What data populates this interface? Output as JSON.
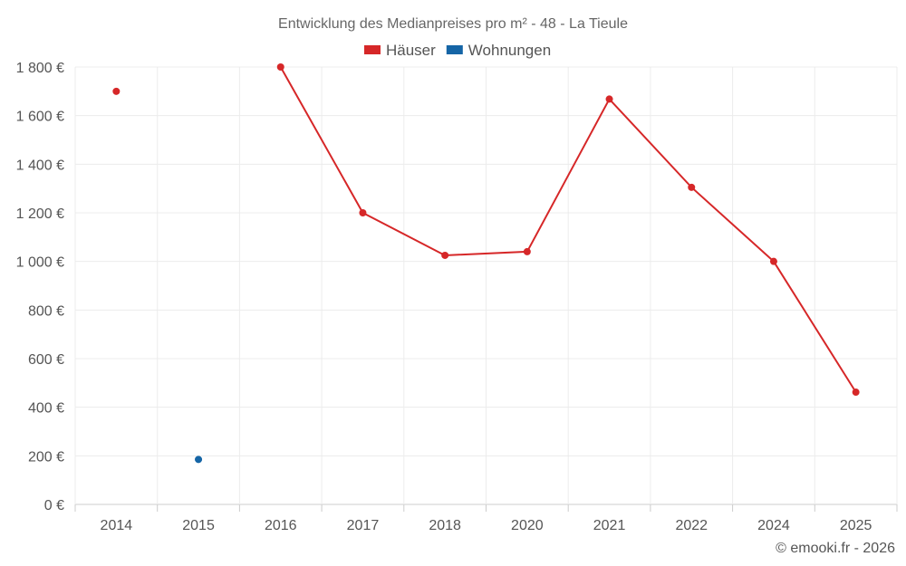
{
  "chart_data": {
    "type": "line",
    "title": "Entwicklung des Medianpreises pro m² - 48 - La Tieule",
    "categories": [
      "2014",
      "2015",
      "2016",
      "2017",
      "2018",
      "2020",
      "2021",
      "2022",
      "2024",
      "2025"
    ],
    "series": [
      {
        "name": "Häuser",
        "color": "#d62728",
        "values": [
          1700,
          null,
          1800,
          1200,
          1025,
          1040,
          1668,
          1305,
          1000,
          462
        ]
      },
      {
        "name": "Wohnungen",
        "color": "#1565a6",
        "values": [
          null,
          185,
          null,
          null,
          null,
          null,
          null,
          null,
          null,
          null
        ]
      }
    ],
    "ylim": [
      0,
      1800
    ],
    "yticks": [
      0,
      200,
      400,
      600,
      800,
      1000,
      1200,
      1400,
      1600,
      1800
    ],
    "ytick_labels": [
      "0 €",
      "200 €",
      "400 €",
      "600 €",
      "800 €",
      "1 000 €",
      "1 200 €",
      "1 400 €",
      "1 600 €",
      "1 800 €"
    ],
    "grid": true,
    "legend_position": "top-center"
  },
  "credit": "© emooki.fr - 2026"
}
